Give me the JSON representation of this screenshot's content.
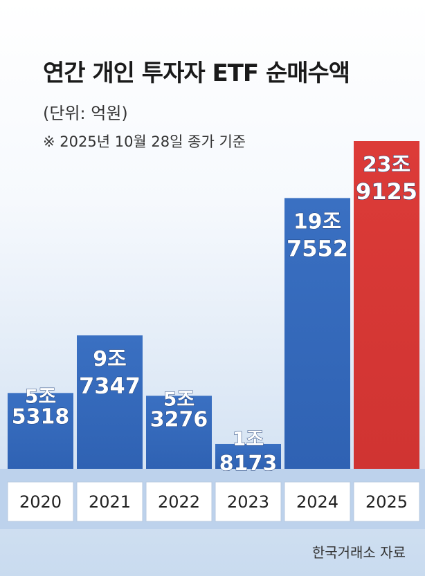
{
  "header": {
    "title": "연간 개인 투자자 ETF 순매수액",
    "unit": "(단위: 억원)",
    "note": "※ 2025년 10월 28일 종가 기준"
  },
  "source": "한국거래소 자료",
  "colors": {
    "bar_blue": "#2f62b3",
    "bar_red": "#d03432"
  },
  "chart_data": {
    "type": "bar",
    "title": "연간 개인 투자자 ETF 순매수액",
    "subtitle": "(단위: 억원)",
    "categories": [
      "2020",
      "2021",
      "2022",
      "2023",
      "2024",
      "2025"
    ],
    "values": [
      55318,
      97347,
      53276,
      18173,
      197552,
      239125
    ],
    "data_labels": [
      [
        "5조",
        "5318"
      ],
      [
        "9조",
        "7347"
      ],
      [
        "5조",
        "3276"
      ],
      [
        "1조",
        "8173"
      ],
      [
        "19조",
        "7552"
      ],
      [
        "23조",
        "9125"
      ]
    ],
    "highlight_index": 5,
    "ylim": [
      0,
      239125
    ],
    "grid": false,
    "legend": "none"
  }
}
